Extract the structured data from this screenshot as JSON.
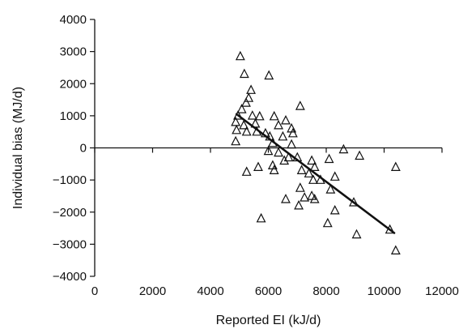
{
  "chart_data": {
    "type": "scatter",
    "xlabel": "Reported EI (kJ/d)",
    "ylabel": "Individual bias (MJ/d)",
    "xlim": [
      0,
      12000
    ],
    "ylim": [
      -4000,
      4000
    ],
    "x_ticks": [
      0,
      2000,
      4000,
      6000,
      8000,
      10000,
      12000
    ],
    "y_ticks": [
      4000,
      3000,
      2000,
      1000,
      0,
      -1000,
      -2000,
      -3000,
      -4000
    ],
    "x_tick_labels": [
      "0",
      "2000",
      "4000",
      "6000",
      "8000",
      "10000",
      "12000"
    ],
    "y_tick_labels": [
      "4000",
      "3000",
      "2000",
      "1000",
      "0",
      "−1000",
      "−2000",
      "−3000",
      "−4000"
    ],
    "grid": false,
    "marker": "open-triangle",
    "marker_color": "#111111",
    "series": [
      {
        "points": [
          {
            "x": 5030,
            "y": 2850
          },
          {
            "x": 5170,
            "y": 2300
          },
          {
            "x": 6020,
            "y": 2250
          },
          {
            "x": 5400,
            "y": 1800
          },
          {
            "x": 5320,
            "y": 1550
          },
          {
            "x": 5230,
            "y": 1400
          },
          {
            "x": 7100,
            "y": 1300
          },
          {
            "x": 5080,
            "y": 1200
          },
          {
            "x": 4950,
            "y": 1000
          },
          {
            "x": 5450,
            "y": 1000
          },
          {
            "x": 5700,
            "y": 980
          },
          {
            "x": 6200,
            "y": 980
          },
          {
            "x": 4870,
            "y": 800
          },
          {
            "x": 5150,
            "y": 700
          },
          {
            "x": 5550,
            "y": 750
          },
          {
            "x": 6350,
            "y": 700
          },
          {
            "x": 6600,
            "y": 850
          },
          {
            "x": 6800,
            "y": 600
          },
          {
            "x": 4900,
            "y": 550
          },
          {
            "x": 5250,
            "y": 500
          },
          {
            "x": 5600,
            "y": 500
          },
          {
            "x": 5900,
            "y": 450
          },
          {
            "x": 6050,
            "y": 350
          },
          {
            "x": 6500,
            "y": 350
          },
          {
            "x": 6850,
            "y": 450
          },
          {
            "x": 4870,
            "y": 200
          },
          {
            "x": 6150,
            "y": 150
          },
          {
            "x": 6800,
            "y": 100
          },
          {
            "x": 6000,
            "y": -100
          },
          {
            "x": 6350,
            "y": -150
          },
          {
            "x": 6700,
            "y": -300
          },
          {
            "x": 6550,
            "y": -400
          },
          {
            "x": 7000,
            "y": -300
          },
          {
            "x": 6150,
            "y": -550
          },
          {
            "x": 6200,
            "y": -700
          },
          {
            "x": 5250,
            "y": -750
          },
          {
            "x": 5650,
            "y": -600
          },
          {
            "x": 7150,
            "y": -700
          },
          {
            "x": 7400,
            "y": -800
          },
          {
            "x": 7500,
            "y": -400
          },
          {
            "x": 7600,
            "y": -600
          },
          {
            "x": 7800,
            "y": -1000
          },
          {
            "x": 7550,
            "y": -1000
          },
          {
            "x": 8100,
            "y": -350
          },
          {
            "x": 8300,
            "y": -900
          },
          {
            "x": 8600,
            "y": -50
          },
          {
            "x": 9150,
            "y": -250
          },
          {
            "x": 8150,
            "y": -1300
          },
          {
            "x": 7100,
            "y": -1250
          },
          {
            "x": 7250,
            "y": -1550
          },
          {
            "x": 7500,
            "y": -1500
          },
          {
            "x": 7600,
            "y": -1600
          },
          {
            "x": 7050,
            "y": -1800
          },
          {
            "x": 6600,
            "y": -1600
          },
          {
            "x": 5750,
            "y": -2200
          },
          {
            "x": 8300,
            "y": -1950
          },
          {
            "x": 8050,
            "y": -2350
          },
          {
            "x": 8950,
            "y": -1700
          },
          {
            "x": 9050,
            "y": -2700
          },
          {
            "x": 10200,
            "y": -2550
          },
          {
            "x": 10400,
            "y": -3200
          },
          {
            "x": 10400,
            "y": -600
          }
        ]
      }
    ],
    "trend_line": {
      "x": [
        4900,
        10350
      ],
      "y": [
        1050,
        -2650
      ]
    }
  }
}
